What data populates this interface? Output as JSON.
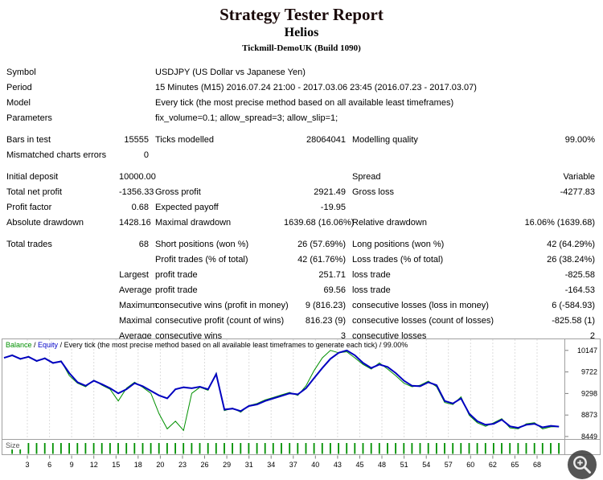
{
  "header": {
    "title": "Strategy Tester Report",
    "expert_name": "Helios",
    "server": "Tickmill-DemoUK (Build 1090)"
  },
  "report": {
    "rows": [
      {
        "wide": true,
        "cells": [
          "Symbol",
          "USDJPY (US Dollar vs Japanese Yen)"
        ]
      },
      {
        "wide": true,
        "cells": [
          "Period",
          "15 Minutes (M15) 2016.07.24 21:00 - 2017.03.06 23:45 (2016.07.23 - 2017.03.07)"
        ]
      },
      {
        "wide": true,
        "cells": [
          "Model",
          "Every tick (the most precise method based on all available least timeframes)"
        ]
      },
      {
        "wide": true,
        "cells": [
          "Parameters",
          "fix_volume=0.1; allow_spread=3; allow_slip=1;"
        ]
      },
      {
        "spacer": true
      },
      {
        "cells": [
          "Bars in test",
          "15555",
          "Ticks modelled",
          "28064041",
          "Modelling quality",
          "99.00%"
        ]
      },
      {
        "cells": [
          "Mismatched charts errors",
          "0",
          "",
          "",
          "",
          ""
        ]
      },
      {
        "spacer": true
      },
      {
        "cells": [
          "Initial deposit",
          "10000.00",
          "",
          "",
          "Spread",
          "Variable"
        ]
      },
      {
        "cells": [
          "Total net profit",
          "-1356.33",
          "Gross profit",
          "2921.49",
          "Gross loss",
          "-4277.83"
        ]
      },
      {
        "cells": [
          "Profit factor",
          "0.68",
          "Expected payoff",
          "-19.95",
          "",
          ""
        ]
      },
      {
        "cells": [
          "Absolute drawdown",
          "1428.16",
          "Maximal drawdown",
          "1639.68 (16.06%)",
          "Relative drawdown",
          "16.06% (1639.68)"
        ]
      },
      {
        "spacer": true
      },
      {
        "cells": [
          "Total trades",
          "68",
          "Short positions (won %)",
          "26 (57.69%)",
          "Long positions (won %)",
          "42 (64.29%)"
        ]
      },
      {
        "cells": [
          "",
          "",
          "Profit trades (% of total)",
          "42 (61.76%)",
          "Loss trades (% of total)",
          "26 (38.24%)"
        ]
      },
      {
        "cells": [
          "",
          "Largest",
          "profit trade",
          "251.71",
          "loss trade",
          "-825.58"
        ]
      },
      {
        "cells": [
          "",
          "Average",
          "profit trade",
          "69.56",
          "loss trade",
          "-164.53"
        ]
      },
      {
        "cells": [
          "",
          "Maximum",
          "consecutive wins (profit in money)",
          "9 (816.23)",
          "consecutive losses (loss in money)",
          "6 (-584.93)"
        ]
      },
      {
        "cells": [
          "",
          "Maximal",
          "consecutive profit (count of wins)",
          "816.23 (9)",
          "consecutive losses (count of losses)",
          "-825.58 (1)"
        ]
      },
      {
        "cells": [
          "",
          "Average",
          "consecutive wins",
          "3",
          "consecutive losses",
          "2"
        ]
      }
    ]
  },
  "chart": {
    "legend": {
      "balance_label": "Balance",
      "equity_label": "Equity",
      "separator": " / ",
      "description": "Every tick (the most precise method based on all available least timeframes to generate each tick)",
      "quality": "99.00%"
    },
    "size_label": "Size"
  },
  "icons": {
    "zoom": "magnifier-plus"
  },
  "colors": {
    "balance_line": "#009000",
    "equity_line": "#0000c0",
    "grid": "#dcdcdc",
    "border": "#a0a0a0",
    "lots_bar": "#009000"
  },
  "chart_data": {
    "type": "line",
    "title": "Balance / Equity / Every tick (the most precise method based on all available least timeframes to generate each tick) / 99.00%",
    "legend_position": "top-left",
    "grid": "vertical-dashed",
    "y_ticks": [
      10147,
      9722,
      9298,
      8873,
      8449
    ],
    "ylim": [
      8400,
      10350
    ],
    "x_tick_labels": [
      3,
      6,
      9,
      12,
      15,
      18,
      20,
      23,
      26,
      29,
      31,
      34,
      37,
      40,
      43,
      45,
      48,
      51,
      54,
      57,
      60,
      62,
      65,
      68
    ],
    "series": [
      {
        "name": "Balance",
        "color": "#009000",
        "width": 1,
        "values": [
          10000,
          10060,
          9970,
          10030,
          9930,
          10000,
          9890,
          9940,
          9650,
          9500,
          9430,
          9560,
          9460,
          9380,
          9150,
          9400,
          9520,
          9420,
          9300,
          8900,
          8600,
          8750,
          8570,
          9300,
          9420,
          9360,
          9700,
          8960,
          9010,
          8930,
          9060,
          9100,
          9170,
          9220,
          9270,
          9320,
          9260,
          9450,
          9750,
          10000,
          10147,
          10100,
          10120,
          10000,
          9870,
          9780,
          9900,
          9780,
          9650,
          9500,
          9430,
          9460,
          9540,
          9430,
          9120,
          9080,
          9230,
          8870,
          8720,
          8650,
          8720,
          8800,
          8620,
          8600,
          8700,
          8720,
          8600,
          8640,
          8643.67
        ]
      },
      {
        "name": "Equity",
        "color": "#0000c0",
        "width": 2,
        "values": [
          10000,
          10050,
          9980,
          10020,
          9940,
          9990,
          9900,
          9930,
          9700,
          9520,
          9450,
          9550,
          9480,
          9400,
          9300,
          9380,
          9500,
          9440,
          9350,
          9260,
          9200,
          9380,
          9420,
          9400,
          9430,
          9380,
          9680,
          8980,
          9000,
          8950,
          9050,
          9080,
          9150,
          9200,
          9250,
          9300,
          9280,
          9400,
          9600,
          9800,
          9980,
          10100,
          10147,
          10050,
          9900,
          9800,
          9870,
          9820,
          9700,
          9550,
          9450,
          9440,
          9520,
          9460,
          9150,
          9100,
          9200,
          8900,
          8750,
          8680,
          8700,
          8780,
          8650,
          8620,
          8680,
          8700,
          8630,
          8660,
          8643.67
        ]
      }
    ],
    "lots": {
      "label": "Size",
      "color": "#009000",
      "count": 68,
      "value": 0.1
    }
  }
}
